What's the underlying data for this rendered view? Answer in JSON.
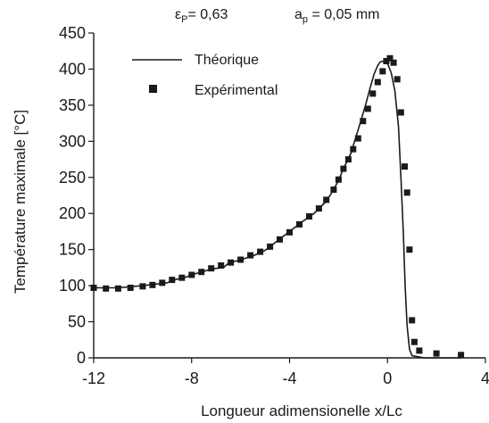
{
  "chart_data": {
    "type": "line",
    "header": {
      "param1": {
        "symbol": "ε",
        "sub": "P",
        "value": "= 0,63"
      },
      "param2": {
        "symbol": "a",
        "sub": "p",
        "value": " = 0,05 mm"
      }
    },
    "xlabel": "Longueur adimensionelle x/Lc",
    "ylabel": "Température maximale [°C]",
    "xlim": [
      -12,
      4
    ],
    "ylim": [
      0,
      450
    ],
    "xticks": [
      -12,
      -8,
      -4,
      0,
      4
    ],
    "yticks": [
      0,
      50,
      100,
      150,
      200,
      250,
      300,
      350,
      400,
      450
    ],
    "grid": false,
    "legend_position": "top-left",
    "series": [
      {
        "name": "Théorique",
        "kind": "line",
        "color": "#1a1a1a",
        "points": [
          [
            -12.0,
            97
          ],
          [
            -11.0,
            97
          ],
          [
            -10.0,
            100
          ],
          [
            -9.5,
            102
          ],
          [
            -9.0,
            104
          ],
          [
            -8.6,
            109
          ],
          [
            -8.3,
            111
          ],
          [
            -8.0,
            115
          ],
          [
            -7.5,
            120
          ],
          [
            -7.0,
            124
          ],
          [
            -6.7,
            125
          ],
          [
            -6.5,
            131
          ],
          [
            -6.2,
            134
          ],
          [
            -6.0,
            136
          ],
          [
            -5.5,
            141
          ],
          [
            -5.0,
            149
          ],
          [
            -4.5,
            162
          ],
          [
            -4.0,
            175
          ],
          [
            -3.5,
            188
          ],
          [
            -3.0,
            200
          ],
          [
            -2.5,
            217
          ],
          [
            -2.2,
            233
          ],
          [
            -2.0,
            246
          ],
          [
            -1.8,
            262
          ],
          [
            -1.5,
            283
          ],
          [
            -1.3,
            305
          ],
          [
            -1.1,
            327
          ],
          [
            -0.9,
            350
          ],
          [
            -0.7,
            375
          ],
          [
            -0.55,
            393
          ],
          [
            -0.4,
            405
          ],
          [
            -0.3,
            410
          ],
          [
            -0.15,
            411
          ],
          [
            0.0,
            408
          ],
          [
            0.15,
            395
          ],
          [
            0.3,
            370
          ],
          [
            0.45,
            320
          ],
          [
            0.55,
            250
          ],
          [
            0.65,
            170
          ],
          [
            0.72,
            100
          ],
          [
            0.8,
            45
          ],
          [
            0.9,
            12
          ],
          [
            1.0,
            3
          ],
          [
            1.5,
            0
          ],
          [
            2.0,
            0
          ],
          [
            3.0,
            0
          ]
        ]
      },
      {
        "name": "Expérimental",
        "kind": "scatter",
        "color": "#1a1a1a",
        "points": [
          [
            -12.0,
            97
          ],
          [
            -11.5,
            96
          ],
          [
            -11.0,
            96
          ],
          [
            -10.5,
            97
          ],
          [
            -10.0,
            99
          ],
          [
            -9.6,
            101
          ],
          [
            -9.2,
            104
          ],
          [
            -8.8,
            108
          ],
          [
            -8.4,
            111
          ],
          [
            -8.0,
            115
          ],
          [
            -7.6,
            119
          ],
          [
            -7.2,
            124
          ],
          [
            -6.8,
            128
          ],
          [
            -6.4,
            132
          ],
          [
            -6.0,
            136
          ],
          [
            -5.6,
            142
          ],
          [
            -5.2,
            147
          ],
          [
            -4.8,
            154
          ],
          [
            -4.4,
            164
          ],
          [
            -4.0,
            174
          ],
          [
            -3.6,
            185
          ],
          [
            -3.2,
            196
          ],
          [
            -2.8,
            207
          ],
          [
            -2.5,
            219
          ],
          [
            -2.2,
            233
          ],
          [
            -2.0,
            247
          ],
          [
            -1.8,
            262
          ],
          [
            -1.6,
            275
          ],
          [
            -1.4,
            289
          ],
          [
            -1.2,
            304
          ],
          [
            -1.0,
            328
          ],
          [
            -0.8,
            345
          ],
          [
            -0.6,
            366
          ],
          [
            -0.4,
            382
          ],
          [
            -0.2,
            397
          ],
          [
            -0.05,
            411
          ],
          [
            0.1,
            415
          ],
          [
            0.25,
            409
          ],
          [
            0.4,
            386
          ],
          [
            0.55,
            340
          ],
          [
            0.7,
            265
          ],
          [
            0.8,
            229
          ],
          [
            0.9,
            150
          ],
          [
            1.0,
            52
          ],
          [
            1.1,
            22
          ],
          [
            1.3,
            10
          ],
          [
            2.0,
            6
          ],
          [
            3.0,
            4
          ]
        ]
      }
    ]
  }
}
